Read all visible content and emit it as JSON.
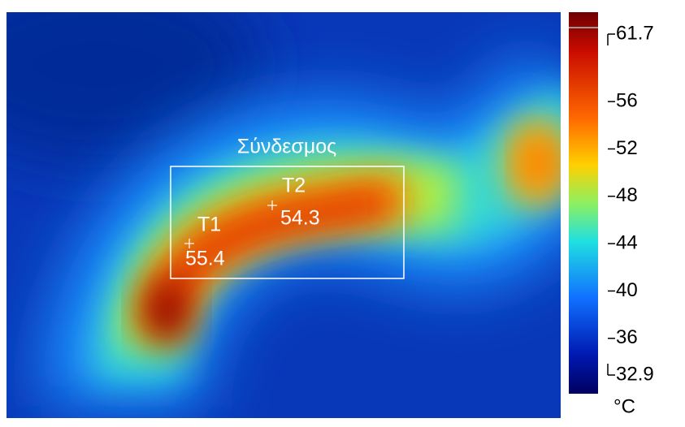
{
  "image": {
    "region_label": "Σύνδεσμος",
    "spots": [
      {
        "label": "T1",
        "value": 55.4
      },
      {
        "label": "T2",
        "value": 54.3
      }
    ]
  },
  "scale": {
    "min": 32.9,
    "max": 61.7,
    "ticks": [
      32.9,
      36,
      40,
      44,
      48,
      52,
      56,
      61.7
    ],
    "unit": "°C"
  }
}
